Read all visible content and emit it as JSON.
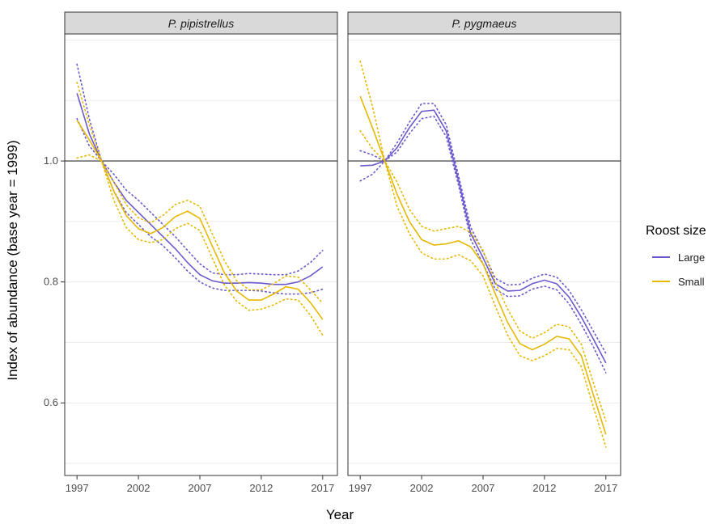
{
  "chart_data": {
    "type": "line",
    "xlabel": "Year",
    "ylabel": "Index of abundance (base year = 1999)",
    "xlim": [
      1996,
      2018.2
    ],
    "ylim": [
      0.48,
      1.21
    ],
    "x_ticks": [
      1997,
      2002,
      2007,
      2012,
      2017
    ],
    "y_ticks": [
      0.6,
      0.8,
      1.0
    ],
    "y_tick_labels": [
      "0.6",
      "0.8",
      "1.0"
    ],
    "reference_line": 1.0,
    "grid": true,
    "legend": {
      "title": "Roost size",
      "position": "right",
      "entries": [
        "Large",
        "Small"
      ]
    },
    "colors": {
      "Large": "#6a5acd",
      "Small": "#e6b800"
    },
    "years": [
      1997,
      1998,
      1999,
      2000,
      2001,
      2002,
      2003,
      2004,
      2005,
      2006,
      2007,
      2008,
      2009,
      2010,
      2011,
      2012,
      2013,
      2014,
      2015,
      2016,
      2017
    ],
    "panels": [
      {
        "title": "P. pipistrellus",
        "series": [
          {
            "name": "Large",
            "values": [
              1.112,
              1.045,
              1.0,
              0.965,
              0.935,
              0.915,
              0.895,
              0.875,
              0.855,
              0.832,
              0.812,
              0.802,
              0.798,
              0.798,
              0.799,
              0.798,
              0.796,
              0.796,
              0.8,
              0.81,
              0.825
            ],
            "lower": [
              1.07,
              1.025,
              1.0,
              0.95,
              0.915,
              0.895,
              0.875,
              0.86,
              0.84,
              0.818,
              0.8,
              0.79,
              0.786,
              0.786,
              0.786,
              0.785,
              0.782,
              0.78,
              0.78,
              0.782,
              0.788
            ],
            "upper": [
              1.16,
              1.07,
              1.0,
              0.978,
              0.952,
              0.935,
              0.915,
              0.895,
              0.875,
              0.852,
              0.83,
              0.815,
              0.812,
              0.812,
              0.814,
              0.813,
              0.812,
              0.812,
              0.818,
              0.832,
              0.852
            ]
          },
          {
            "name": "Small",
            "values": [
              1.067,
              1.035,
              1.0,
              0.95,
              0.91,
              0.888,
              0.88,
              0.89,
              0.908,
              0.917,
              0.905,
              0.86,
              0.815,
              0.785,
              0.77,
              0.77,
              0.78,
              0.792,
              0.788,
              0.766,
              0.738
            ],
            "lower": [
              1.005,
              1.01,
              1.0,
              0.935,
              0.89,
              0.87,
              0.865,
              0.87,
              0.888,
              0.897,
              0.885,
              0.84,
              0.795,
              0.768,
              0.753,
              0.755,
              0.762,
              0.772,
              0.77,
              0.745,
              0.712
            ],
            "upper": [
              1.13,
              1.06,
              1.0,
              0.965,
              0.928,
              0.906,
              0.898,
              0.91,
              0.928,
              0.935,
              0.925,
              0.88,
              0.835,
              0.802,
              0.787,
              0.787,
              0.797,
              0.81,
              0.808,
              0.787,
              0.765
            ]
          }
        ]
      },
      {
        "title": "P. pygmaeus",
        "series": [
          {
            "name": "Large",
            "values": [
              0.992,
              0.993,
              1.0,
              1.022,
              1.055,
              1.082,
              1.084,
              1.05,
              0.968,
              0.88,
              0.84,
              0.797,
              0.785,
              0.786,
              0.797,
              0.803,
              0.797,
              0.775,
              0.742,
              0.705,
              0.666
            ],
            "lower": [
              0.967,
              0.978,
              1.0,
              1.015,
              1.045,
              1.07,
              1.074,
              1.04,
              0.96,
              0.87,
              0.83,
              0.788,
              0.776,
              0.777,
              0.788,
              0.793,
              0.787,
              0.764,
              0.73,
              0.692,
              0.65
            ],
            "upper": [
              1.017,
              1.01,
              1.0,
              1.03,
              1.064,
              1.095,
              1.095,
              1.06,
              0.976,
              0.89,
              0.85,
              0.806,
              0.795,
              0.796,
              0.806,
              0.813,
              0.808,
              0.786,
              0.754,
              0.718,
              0.682
            ]
          },
          {
            "name": "Small",
            "values": [
              1.107,
              1.055,
              1.0,
              0.945,
              0.9,
              0.87,
              0.861,
              0.863,
              0.868,
              0.858,
              0.83,
              0.78,
              0.733,
              0.698,
              0.688,
              0.697,
              0.71,
              0.706,
              0.678,
              0.612,
              0.548
            ],
            "lower": [
              1.05,
              1.02,
              1.0,
              0.925,
              0.88,
              0.848,
              0.838,
              0.838,
              0.845,
              0.835,
              0.81,
              0.76,
              0.712,
              0.678,
              0.67,
              0.678,
              0.69,
              0.688,
              0.66,
              0.592,
              0.527
            ],
            "upper": [
              1.165,
              1.09,
              1.0,
              0.965,
              0.92,
              0.892,
              0.884,
              0.888,
              0.892,
              0.882,
              0.852,
              0.8,
              0.755,
              0.719,
              0.707,
              0.716,
              0.73,
              0.726,
              0.697,
              0.632,
              0.57
            ]
          }
        ]
      }
    ]
  }
}
